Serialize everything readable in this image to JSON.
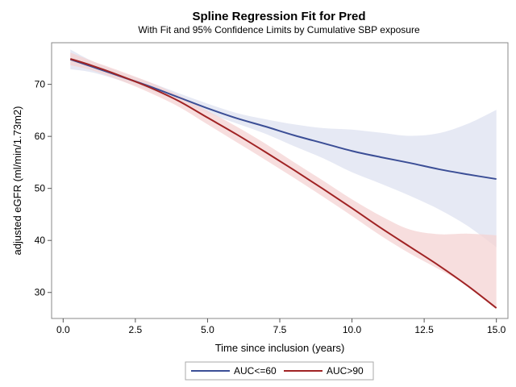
{
  "chart_data": {
    "type": "line",
    "title": "Spline Regression Fit for Pred",
    "subtitle": "With Fit and 95% Confidence Limits by Cumulative SBP exposure",
    "xlabel": "Time since inclusion (years)",
    "ylabel": "adjusted eGFR (ml/min/1.73m2)",
    "xlim": [
      -0.4,
      15.4
    ],
    "ylim": [
      25,
      78
    ],
    "xticks": [
      0.0,
      2.5,
      5.0,
      7.5,
      10.0,
      12.5,
      15.0
    ],
    "xtick_labels": [
      "0.0",
      "2.5",
      "5.0",
      "7.5",
      "10.0",
      "12.5",
      "15.0"
    ],
    "yticks": [
      30,
      40,
      50,
      60,
      70
    ],
    "ytick_labels": [
      "30",
      "40",
      "50",
      "60",
      "70"
    ],
    "grid": false,
    "legend_position": "bottom",
    "x": [
      0.25,
      1.0,
      2.0,
      3.0,
      4.0,
      5.0,
      6.0,
      7.0,
      8.0,
      9.0,
      10.0,
      11.0,
      12.0,
      13.0,
      14.0,
      15.0
    ],
    "series": [
      {
        "name": "AUC<=60",
        "color": "#3b4e96",
        "band_color": "#dde1f0",
        "fit": [
          74.8,
          73.4,
          71.5,
          69.6,
          67.5,
          65.4,
          63.5,
          61.9,
          60.2,
          58.7,
          57.2,
          56.0,
          54.9,
          53.7,
          52.7,
          51.8
        ],
        "lower": [
          72.9,
          72.3,
          70.7,
          68.8,
          66.7,
          64.5,
          62.5,
          60.5,
          58.1,
          55.8,
          53.1,
          50.9,
          48.6,
          46.0,
          42.8,
          38.7
        ],
        "upper": [
          76.7,
          74.5,
          72.3,
          70.4,
          68.3,
          66.3,
          64.5,
          63.3,
          62.3,
          61.6,
          61.3,
          60.7,
          60.1,
          60.6,
          62.4,
          65.1
        ]
      },
      {
        "name": "AUC>90",
        "color": "#a02324",
        "band_color": "#f4d3d3",
        "fit": [
          74.9,
          73.6,
          71.6,
          69.4,
          66.8,
          63.6,
          60.4,
          57.0,
          53.5,
          49.9,
          46.2,
          42.4,
          38.8,
          35.2,
          31.3,
          27.0
        ],
        "lower": [
          73.7,
          72.7,
          70.7,
          68.4,
          65.7,
          62.3,
          58.9,
          55.5,
          52.0,
          48.4,
          44.7,
          40.9,
          37.5,
          34.5,
          31.3,
          27.0
        ],
        "upper": [
          76.1,
          74.5,
          72.5,
          70.4,
          67.9,
          64.9,
          61.9,
          58.6,
          55.0,
          51.5,
          47.9,
          44.7,
          42.1,
          41.2,
          41.3,
          41.0
        ]
      }
    ]
  }
}
